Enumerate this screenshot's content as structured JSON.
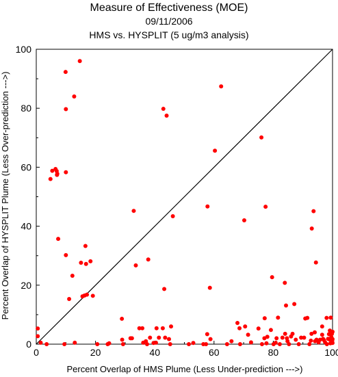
{
  "chart_data": {
    "type": "scatter",
    "title": "Measure of Effectiveness (MOE)",
    "subtitle": "09/11/2006",
    "subtitle2": "HMS vs. HYSPLIT  (5 ug/m3 analysis)",
    "xlabel": "Percent Overlap of HMS Plume (Less Under-prediction --->)",
    "ylabel": "Percent Overlap of HYSPLIT Plume (Less Over-prediction --->)",
    "xlim": [
      0,
      100
    ],
    "ylim": [
      0,
      100
    ],
    "xticks": [
      "0",
      "20",
      "40",
      "60",
      "80",
      "100"
    ],
    "yticks": [
      "0",
      "20",
      "40",
      "60",
      "80",
      "100"
    ],
    "grid": false,
    "reference_line": "diagonal 1:1",
    "point_color": "#ff0000",
    "line_color": "#000000",
    "points": [
      [
        0.5,
        5.3
      ],
      [
        0.5,
        2.7
      ],
      [
        1.5,
        0.5
      ],
      [
        3.5,
        0.0
      ],
      [
        4.8,
        56.0
      ],
      [
        5.4,
        58.8
      ],
      [
        6.5,
        59.4
      ],
      [
        6.9,
        58.7
      ],
      [
        7.0,
        57.4
      ],
      [
        7.1,
        57.8
      ],
      [
        7.4,
        35.7
      ],
      [
        9.5,
        0.0
      ],
      [
        9.9,
        92.3
      ],
      [
        10.0,
        79.7
      ],
      [
        10.0,
        58.3
      ],
      [
        10.0,
        30.2
      ],
      [
        11.1,
        15.3
      ],
      [
        12.2,
        23.2
      ],
      [
        12.8,
        84.0
      ],
      [
        14.7,
        96.0
      ],
      [
        13.0,
        0.5
      ],
      [
        15.1,
        27.6
      ],
      [
        15.6,
        16.2
      ],
      [
        16.3,
        16.5
      ],
      [
        16.6,
        33.3
      ],
      [
        16.8,
        27.2
      ],
      [
        17.1,
        16.8
      ],
      [
        18.3,
        28.1
      ],
      [
        19.1,
        16.4
      ],
      [
        20.6,
        0.0
      ],
      [
        24.1,
        0.0
      ],
      [
        24.6,
        0.3
      ],
      [
        28.9,
        8.6
      ],
      [
        29.0,
        1.5
      ],
      [
        29.3,
        0.0
      ],
      [
        31.8,
        2.0
      ],
      [
        32.3,
        2.0
      ],
      [
        32.9,
        45.2
      ],
      [
        33.6,
        26.7
      ],
      [
        34.8,
        5.4
      ],
      [
        35.8,
        5.4
      ],
      [
        36.1,
        0.5
      ],
      [
        37.0,
        1.0
      ],
      [
        37.4,
        0.0
      ],
      [
        37.8,
        28.7
      ],
      [
        38.4,
        2.2
      ],
      [
        39.6,
        0.4
      ],
      [
        40.4,
        0.5
      ],
      [
        40.6,
        5.4
      ],
      [
        41.4,
        2.2
      ],
      [
        42.7,
        5.4
      ],
      [
        42.9,
        79.8
      ],
      [
        43.2,
        18.7
      ],
      [
        43.5,
        2.2
      ],
      [
        44.0,
        77.5
      ],
      [
        44.8,
        1.7
      ],
      [
        45.5,
        6.0
      ],
      [
        46.1,
        43.4
      ],
      [
        45.2,
        0.0
      ],
      [
        51.5,
        0.0
      ],
      [
        53.0,
        0.4
      ],
      [
        56.4,
        0.0
      ],
      [
        57.3,
        0.0
      ],
      [
        57.7,
        3.4
      ],
      [
        57.8,
        46.7
      ],
      [
        58.6,
        19.1
      ],
      [
        58.8,
        1.7
      ],
      [
        60.3,
        65.6
      ],
      [
        62.4,
        87.4
      ],
      [
        64.4,
        0.0
      ],
      [
        65.9,
        1.0
      ],
      [
        67.9,
        7.2
      ],
      [
        68.6,
        5.4
      ],
      [
        68.8,
        0.0
      ],
      [
        70.2,
        42.0
      ],
      [
        70.5,
        6.0
      ],
      [
        71.5,
        3.2
      ],
      [
        72.5,
        0.6
      ],
      [
        75.0,
        5.3
      ],
      [
        76.0,
        70.1
      ],
      [
        76.2,
        0.0
      ],
      [
        77.0,
        2.0
      ],
      [
        77.1,
        8.8
      ],
      [
        77.4,
        46.6
      ],
      [
        77.7,
        0.3
      ],
      [
        78.0,
        2.5
      ],
      [
        79.2,
        4.8
      ],
      [
        79.6,
        22.7
      ],
      [
        80.1,
        0.0
      ],
      [
        80.8,
        0.5
      ],
      [
        81.1,
        2.0
      ],
      [
        81.6,
        9.0
      ],
      [
        82.2,
        0.0
      ],
      [
        83.1,
        2.2
      ],
      [
        83.9,
        20.8
      ],
      [
        84.0,
        3.5
      ],
      [
        84.3,
        13.1
      ],
      [
        84.6,
        2.0
      ],
      [
        84.8,
        1.0
      ],
      [
        85.3,
        0.0
      ],
      [
        86.0,
        2.6
      ],
      [
        86.5,
        3.5
      ],
      [
        87.1,
        13.6
      ],
      [
        87.6,
        1.5
      ],
      [
        88.6,
        0.0
      ],
      [
        89.4,
        2.2
      ],
      [
        90.4,
        2.2
      ],
      [
        90.8,
        8.7
      ],
      [
        91.5,
        8.9
      ],
      [
        92.2,
        0.0
      ],
      [
        92.7,
        1.2
      ],
      [
        92.9,
        3.5
      ],
      [
        93.0,
        39.2
      ],
      [
        93.6,
        45.1
      ],
      [
        94.0,
        4.0
      ],
      [
        94.1,
        1.0
      ],
      [
        94.4,
        27.7
      ],
      [
        94.6,
        1.5
      ],
      [
        95.3,
        0.6
      ],
      [
        95.8,
        1.5
      ],
      [
        96.5,
        6.0
      ],
      [
        96.5,
        3.2
      ],
      [
        96.8,
        1.8
      ],
      [
        97.1,
        1.4
      ],
      [
        97.5,
        0.6
      ],
      [
        98.0,
        8.9
      ],
      [
        98.1,
        0.0
      ],
      [
        98.5,
        1.8
      ],
      [
        98.8,
        3.4
      ],
      [
        99.0,
        1.6
      ],
      [
        99.1,
        4.6
      ],
      [
        99.3,
        0.3
      ],
      [
        99.4,
        9.0
      ],
      [
        99.6,
        2.4
      ],
      [
        99.7,
        0.9
      ],
      [
        99.8,
        3.5
      ],
      [
        99.9,
        1.2
      ],
      [
        100.0,
        4.2
      ],
      [
        100.0,
        0.4
      ],
      [
        100.0,
        1.7
      ]
    ]
  }
}
